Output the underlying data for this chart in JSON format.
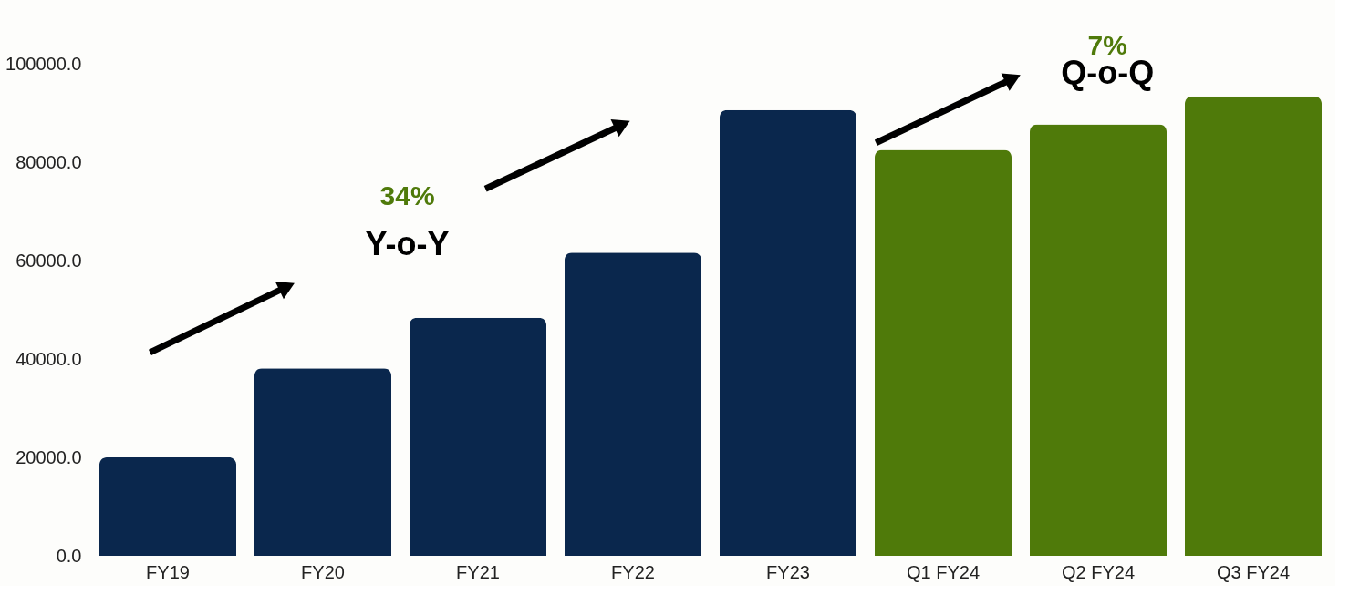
{
  "chart_data": {
    "type": "bar",
    "categories": [
      "FY19",
      "FY20",
      "FY21",
      "FY22",
      "FY23",
      "Q1 FY24",
      "Q2 FY24",
      "Q3 FY24"
    ],
    "values": [
      20000,
      38100,
      48400,
      61600,
      90600,
      82500,
      87700,
      93400
    ],
    "colors": [
      "#0a274d",
      "#0a274d",
      "#0a274d",
      "#0a274d",
      "#0a274d",
      "#4f7a0a",
      "#4f7a0a",
      "#4f7a0a"
    ],
    "ylim": [
      0,
      100000
    ],
    "yticks": [
      {
        "value": 0,
        "label": "0.0"
      },
      {
        "value": 20000,
        "label": "20000.0"
      },
      {
        "value": 40000,
        "label": "40000.0"
      },
      {
        "value": 60000,
        "label": "60000.0"
      },
      {
        "value": 80000,
        "label": "80000.0"
      },
      {
        "value": 100000,
        "label": "100000.0"
      }
    ],
    "annotations": [
      "34%",
      "Y-o-Y",
      "7%",
      "Q-o-Q"
    ],
    "grid": false
  }
}
